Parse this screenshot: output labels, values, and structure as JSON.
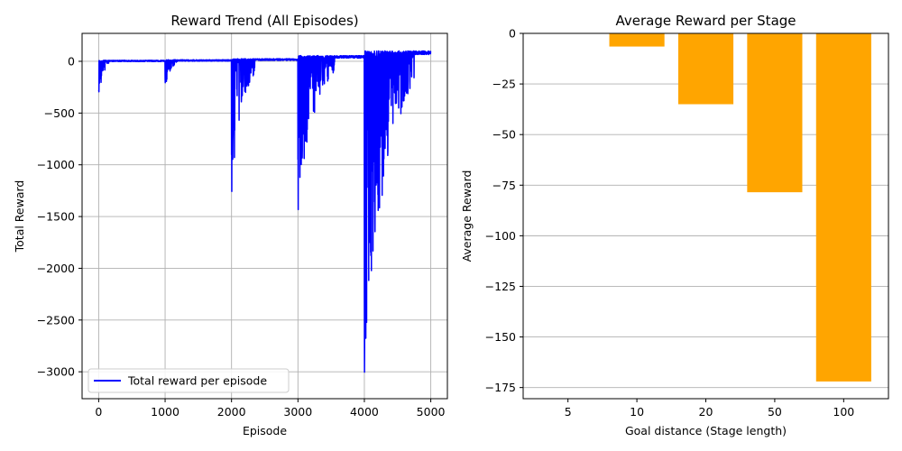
{
  "chart_data": [
    {
      "type": "line",
      "title": "Reward Trend (All Episodes)",
      "xlabel": "Episode",
      "ylabel": "Total Reward",
      "xlim": [
        -250,
        5250
      ],
      "ylim": [
        -3260,
        270
      ],
      "xticks": [
        0,
        1000,
        2000,
        3000,
        4000,
        5000
      ],
      "yticks": [
        0,
        -500,
        -1000,
        -1500,
        -2000,
        -2500,
        -3000
      ],
      "grid": true,
      "legend_position": "lower-left",
      "series": [
        {
          "name": "Total reward per episode",
          "color": "#0000ff",
          "stages": [
            {
              "start": 0,
              "end": 1000,
              "plateau": 10,
              "spike_min": -380,
              "spike_len": 150
            },
            {
              "start": 1000,
              "end": 2000,
              "plateau": 15,
              "spike_min": -300,
              "spike_len": 180
            },
            {
              "start": 2000,
              "end": 3000,
              "plateau": 25,
              "spike_min": -1350,
              "spike_len": 350
            },
            {
              "start": 3000,
              "end": 4000,
              "plateau": 55,
              "spike_min": -1510,
              "spike_len": 550
            },
            {
              "start": 4000,
              "end": 5000,
              "plateau": 100,
              "spike_min": -3100,
              "spike_len": 750
            }
          ]
        }
      ]
    },
    {
      "type": "bar",
      "title": "Average Reward per Stage",
      "xlabel": "Goal distance (Stage length)",
      "ylabel": "Average Reward",
      "categories": [
        "5",
        "10",
        "20",
        "50",
        "100"
      ],
      "values": [
        0,
        -6.5,
        -35,
        -78.5,
        -172
      ],
      "ylim": [
        -180.5,
        0
      ],
      "yticks": [
        0,
        -25,
        -50,
        -75,
        -100,
        -125,
        -150,
        -175
      ],
      "grid": "y",
      "bar_color": "#ffa500"
    }
  ]
}
